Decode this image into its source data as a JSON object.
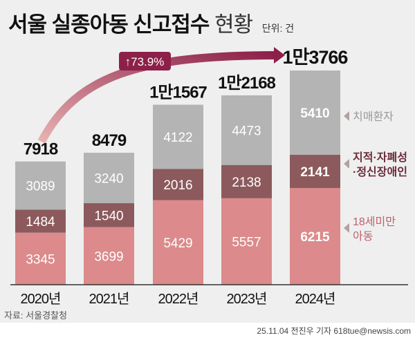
{
  "title": {
    "main": "서울 실종아동 신고접수",
    "sub": "현황",
    "unit": "단위: 건"
  },
  "growth_badge": "73.9%",
  "source": "자료: 서울경찰청",
  "credit": "25.11.04 전진우 기자 618tue@newsis.com",
  "colors": {
    "치매환자": "#b4b4b4",
    "지적·자폐성·정신장애인": "#8c5a5c",
    "18세미만 아동": "#dc8a8b",
    "arrow": "#8c2048"
  },
  "chart_data": {
    "type": "bar",
    "stacked": true,
    "categories": [
      "2020년",
      "2021년",
      "2022년",
      "2023년",
      "2024년"
    ],
    "totals": [
      "7918",
      "8479",
      "1만1567",
      "1만2168",
      "1만3766"
    ],
    "series": [
      {
        "name": "18세미만 아동",
        "values": [
          3345,
          3699,
          5429,
          5557,
          6215
        ]
      },
      {
        "name": "지적·자폐성·정신장애인",
        "values": [
          1484,
          1540,
          2016,
          2138,
          2141
        ]
      },
      {
        "name": "치매환자",
        "values": [
          3089,
          3240,
          4122,
          4473,
          5410
        ]
      }
    ],
    "legend_lines": [
      [
        "치매환자"
      ],
      [
        "지적·자폐성",
        "·정신장애인"
      ],
      [
        "18세미만",
        "아동"
      ]
    ],
    "legend_placement": "right",
    "grid": false
  }
}
